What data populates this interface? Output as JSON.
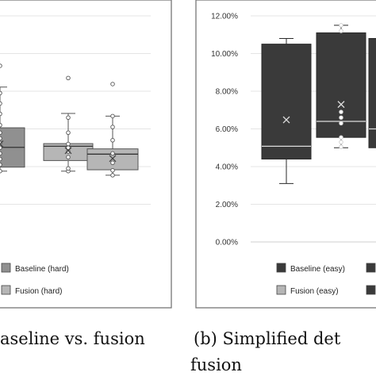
{
  "chart_data": [
    {
      "type": "box",
      "panel": "left (cropped)",
      "series": [
        {
          "name": "Baseline (hard)",
          "color": "#909090",
          "boxes": [
            {
              "whisker_low": 0.0376,
              "q1": 0.0397,
              "median": 0.0502,
              "q3": 0.0606,
              "whisker_high": 0.0822,
              "mean": 0.052,
              "points": [
                0.0376,
                0.041,
                0.044,
                0.047,
                0.05,
                0.0525,
                0.055,
                0.058,
                0.062,
                0.068,
                0.0735,
                0.079,
                0.0935
              ]
            }
          ]
        },
        {
          "name": "Fusion (hard)",
          "color": "#b6b6b6",
          "boxes": [
            {
              "whisker_low": 0.0376,
              "q1": 0.0432,
              "median": 0.0508,
              "q3": 0.0522,
              "whisker_high": 0.0682,
              "mean": 0.0485,
              "points": [
                0.0376,
                0.039,
                0.045,
                0.048,
                0.05,
                0.052,
                0.058,
                0.066,
                0.087
              ]
            },
            {
              "whisker_low": 0.0354,
              "q1": 0.0383,
              "median": 0.0466,
              "q3": 0.0494,
              "whisker_high": 0.0668,
              "mean": 0.0443,
              "points": [
                0.0354,
                0.038,
                0.042,
                0.047,
                0.054,
                0.061,
                0.0668,
                0.0838
              ]
            }
          ]
        }
      ]
    },
    {
      "type": "box",
      "panel": "b",
      "yticks": [
        "0.00%",
        "2.00%",
        "4.00%",
        "6.00%",
        "8.00%",
        "10.00%",
        "12.00%"
      ],
      "ylim": [
        0,
        0.12
      ],
      "series": [
        {
          "name": "Baseline (easy)",
          "color": "#3a3a3a",
          "boxes": [
            {
              "whisker_low": 0.031,
              "q1": 0.044,
              "median": 0.0508,
              "q3": 0.105,
              "whisker_high": 0.108,
              "mean": 0.0648,
              "points": []
            },
            {
              "whisker_low": 0.05,
              "q1": 0.0555,
              "median": 0.064,
              "q3": 0.111,
              "whisker_high": 0.115,
              "mean": 0.073,
              "points": [
                0.0505,
                0.053,
                0.0555,
                0.063,
                0.066,
                0.069,
                0.112,
                0.115
              ]
            },
            {
              "whisker_low": 0.05,
              "q1": 0.05,
              "median": 0.06,
              "q3": 0.108,
              "whisker_high": 0.108,
              "mean": 0.07,
              "points": []
            }
          ]
        },
        {
          "name": "Fusion (easy)",
          "color": "#b6b6b6",
          "boxes": []
        }
      ]
    }
  ],
  "captions": {
    "left": "aseline vs. fusion",
    "right": "(b) Simplified det",
    "right_line2": "fusion"
  }
}
